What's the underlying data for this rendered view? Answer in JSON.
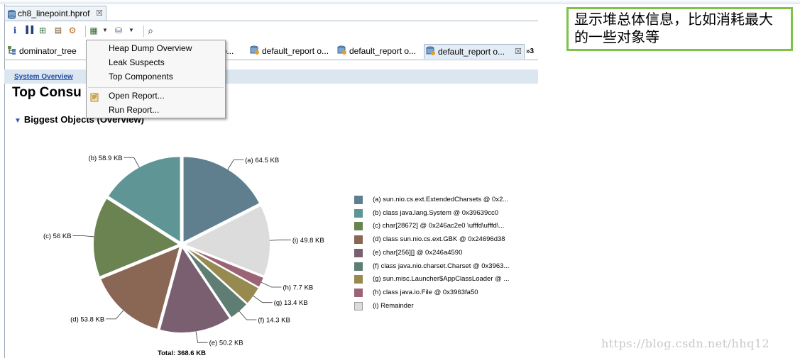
{
  "editor": {
    "title_tab": "ch8_linepoint.hprof",
    "title_close": "☒"
  },
  "toolbar": {
    "buttons": [
      {
        "icon": "info-icon",
        "glyph": "i"
      },
      {
        "icon": "histogram-icon",
        "glyph": "▐▐"
      },
      {
        "icon": "dominator-tree-icon",
        "glyph": "⊞"
      },
      {
        "icon": "oql-icon",
        "glyph": "▤"
      },
      {
        "icon": "settings-icon",
        "glyph": "⚙"
      },
      {
        "icon": "report-icon",
        "glyph": "▦"
      },
      {
        "icon": "heap-dump-icon",
        "glyph": "⛁"
      },
      {
        "icon": "search-icon",
        "glyph": "⌕"
      }
    ]
  },
  "tabs": [
    {
      "label": "dominator_tree"
    },
    {
      "label": "t o..."
    },
    {
      "label": "default_report o..."
    },
    {
      "label": "default_report o..."
    },
    {
      "label": "default_report o...",
      "active": true,
      "close": "☒"
    }
  ],
  "tabs_overflow": "»3",
  "breadcrumb": "System Overview",
  "page_heading": "Top Consu",
  "section_heading": "Biggest Objects (Overview)",
  "chart_data": {
    "type": "pie",
    "total_label": "Total: 368.6 KB",
    "slices": [
      {
        "label": "(a) 64.5 KB",
        "value": 64.5,
        "color": "#5f7f8f",
        "legend": "(a)  sun.nio.cs.ext.ExtendedCharsets @ 0x2..."
      },
      {
        "label": "(i) 49.8 KB",
        "value": 49.8,
        "color": "#dcdcdc",
        "legend": "(i)  Remainder"
      },
      {
        "label": "(h) 7.7 KB",
        "value": 7.7,
        "color": "#9a6475",
        "legend": "(h)  class java.io.File @ 0x3963fa50"
      },
      {
        "label": "(g) 13.4 KB",
        "value": 13.4,
        "color": "#968a50",
        "legend": "(g)  sun.misc.Launcher$AppClassLoader @ ..."
      },
      {
        "label": "(f) 14.3 KB",
        "value": 14.3,
        "color": "#5f7d72",
        "legend": "(f)  class java.nio.charset.Charset @ 0x3963..."
      },
      {
        "label": "(e) 50.2 KB",
        "value": 50.2,
        "color": "#7a5f70",
        "legend": "(e)  char[256][] @ 0x246a4590"
      },
      {
        "label": "(d) 53.8 KB",
        "value": 53.8,
        "color": "#8a6655",
        "legend": "(d)  class sun.nio.cs.ext.GBK @ 0x24696d38"
      },
      {
        "label": "(c) 56 KB",
        "value": 56,
        "color": "#6b8350",
        "legend": "(c)  char[28672] @ 0x246ac2e0  \\ufffd\\ufffd\\..."
      },
      {
        "label": "(b) 58.9 KB",
        "value": 58.9,
        "color": "#5f9595",
        "legend": "(b)  class java.lang.System @ 0x39639cc0"
      }
    ],
    "legend_order": [
      "a",
      "b",
      "c",
      "d",
      "e",
      "f",
      "g",
      "h",
      "i"
    ]
  },
  "menu": {
    "items": [
      "Heap Dump Overview",
      "Leak Suspects",
      "Top Components",
      "Open Report...",
      "Run Report..."
    ]
  },
  "note": "显示堆总体信息，比如消耗最大的一些对象等",
  "watermark": "https://blog.csdn.net/hhq12"
}
